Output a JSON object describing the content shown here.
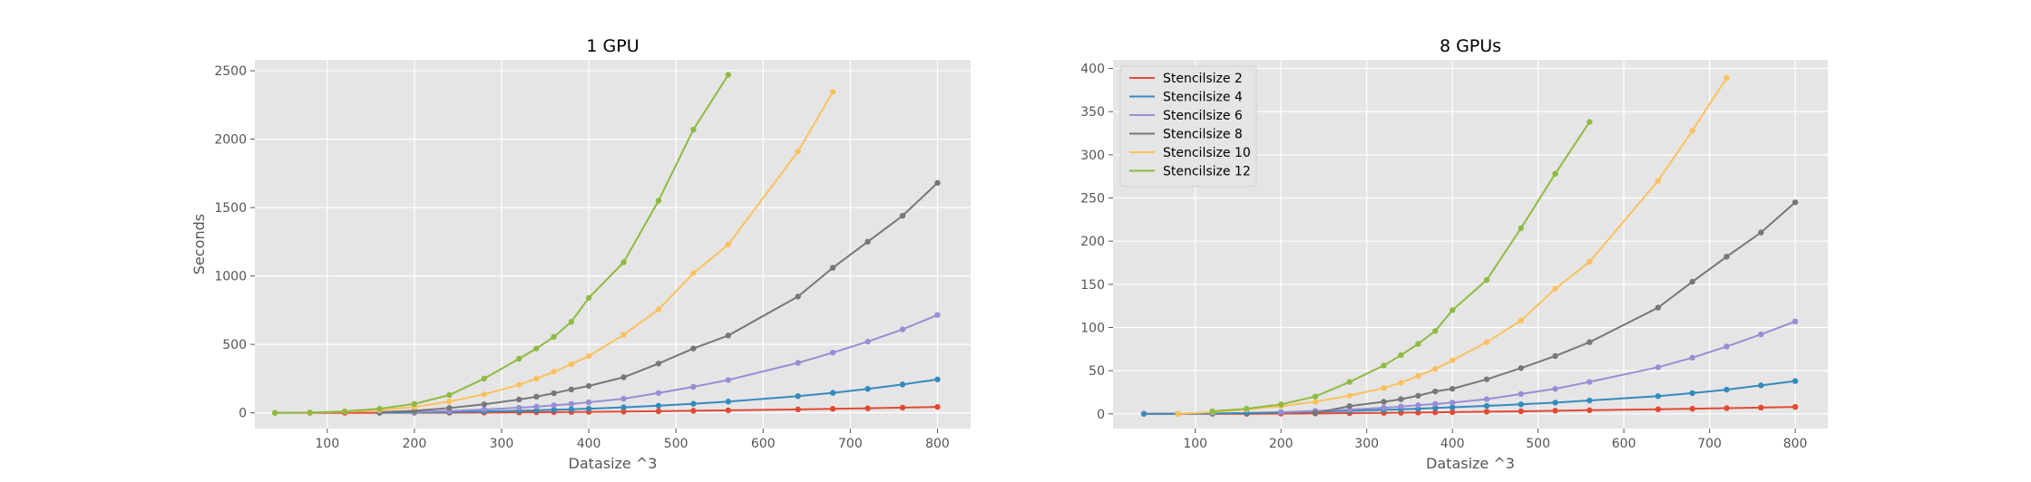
{
  "chart_data": [
    {
      "type": "line",
      "title": "1 GPU",
      "xlabel": "Datasize ^3",
      "ylabel": "Seconds",
      "xlim": [
        17,
        838
      ],
      "ylim": [
        -115,
        2580
      ],
      "xticks": [
        100,
        200,
        300,
        400,
        500,
        600,
        700,
        800
      ],
      "yticks": [
        0,
        500,
        1000,
        1500,
        2000,
        2500
      ],
      "grid": true,
      "legend": null,
      "series": [
        {
          "name": "Stencilsize 2",
          "color": "#E24A33",
          "points": [
            [
              40,
              0
            ],
            [
              80,
              0
            ],
            [
              120,
              0
            ],
            [
              160,
              0
            ],
            [
              200,
              1
            ],
            [
              240,
              1
            ],
            [
              280,
              2
            ],
            [
              320,
              3
            ],
            [
              340,
              4
            ],
            [
              360,
              5
            ],
            [
              380,
              6
            ],
            [
              400,
              7
            ],
            [
              440,
              9
            ],
            [
              480,
              12
            ],
            [
              520,
              15
            ],
            [
              560,
              18
            ],
            [
              640,
              25
            ],
            [
              680,
              29
            ],
            [
              720,
              33
            ],
            [
              760,
              38
            ],
            [
              800,
              43
            ]
          ]
        },
        {
          "name": "Stencilsize 4",
          "color": "#348ABD",
          "points": [
            [
              160,
              1
            ],
            [
              200,
              3
            ],
            [
              240,
              6
            ],
            [
              280,
              10
            ],
            [
              320,
              15
            ],
            [
              340,
              18
            ],
            [
              360,
              22
            ],
            [
              380,
              26
            ],
            [
              400,
              30
            ],
            [
              440,
              40
            ],
            [
              480,
              52
            ],
            [
              520,
              66
            ],
            [
              560,
              82
            ],
            [
              640,
              122
            ],
            [
              680,
              146
            ],
            [
              720,
              175
            ],
            [
              760,
              207
            ],
            [
              800,
              244
            ]
          ]
        },
        {
          "name": "Stencilsize 6",
          "color": "#988ED5",
          "points": [
            [
              200,
              7
            ],
            [
              240,
              14
            ],
            [
              280,
              24
            ],
            [
              320,
              37
            ],
            [
              340,
              45
            ],
            [
              360,
              55
            ],
            [
              380,
              65
            ],
            [
              400,
              77
            ],
            [
              440,
              103
            ],
            [
              480,
              145
            ],
            [
              520,
              190
            ],
            [
              560,
              240
            ],
            [
              640,
              365
            ],
            [
              680,
              440
            ],
            [
              720,
              520
            ],
            [
              760,
              610
            ],
            [
              800,
              715
            ]
          ]
        },
        {
          "name": "Stencilsize 8",
          "color": "#777777",
          "points": [
            [
              160,
              5
            ],
            [
              200,
              15
            ],
            [
              240,
              35
            ],
            [
              280,
              62
            ],
            [
              320,
              97
            ],
            [
              340,
              118
            ],
            [
              360,
              143
            ],
            [
              380,
              171
            ],
            [
              400,
              196
            ],
            [
              440,
              260
            ],
            [
              480,
              360
            ],
            [
              520,
              470
            ],
            [
              560,
              565
            ],
            [
              640,
              850
            ],
            [
              680,
              1060
            ],
            [
              720,
              1250
            ],
            [
              760,
              1440
            ],
            [
              800,
              1680
            ]
          ]
        },
        {
          "name": "Stencilsize 10",
          "color": "#FBC15E",
          "points": [
            [
              40,
              0
            ],
            [
              80,
              2
            ],
            [
              120,
              8
            ],
            [
              160,
              20
            ],
            [
              200,
              42
            ],
            [
              240,
              82
            ],
            [
              280,
              135
            ],
            [
              320,
              205
            ],
            [
              340,
              250
            ],
            [
              360,
              300
            ],
            [
              380,
              355
            ],
            [
              400,
              415
            ],
            [
              440,
              570
            ],
            [
              480,
              755
            ],
            [
              520,
              1020
            ],
            [
              560,
              1230
            ],
            [
              640,
              1910
            ],
            [
              680,
              2345
            ]
          ]
        },
        {
          "name": "Stencilsize 12",
          "color": "#8EBA42",
          "points": [
            [
              40,
              0
            ],
            [
              80,
              2
            ],
            [
              120,
              10
            ],
            [
              160,
              30
            ],
            [
              200,
              65
            ],
            [
              240,
              130
            ],
            [
              280,
              250
            ],
            [
              320,
              395
            ],
            [
              340,
              470
            ],
            [
              360,
              555
            ],
            [
              380,
              665
            ],
            [
              400,
              840
            ],
            [
              440,
              1100
            ],
            [
              480,
              1550
            ],
            [
              520,
              2070
            ],
            [
              560,
              2470
            ]
          ]
        }
      ]
    },
    {
      "type": "line",
      "title": "8 GPUs",
      "xlabel": "Datasize ^3",
      "ylabel": "",
      "xlim": [
        4,
        838
      ],
      "ylim": [
        -17,
        410
      ],
      "xticks": [
        100,
        200,
        300,
        400,
        500,
        600,
        700,
        800
      ],
      "yticks": [
        0,
        50,
        100,
        150,
        200,
        250,
        300,
        350,
        400
      ],
      "grid": true,
      "legend": "top-left",
      "series": [
        {
          "name": "Stencilsize 2",
          "color": "#E24A33",
          "points": [
            [
              40,
              0
            ],
            [
              80,
              0
            ],
            [
              120,
              0
            ],
            [
              160,
              0
            ],
            [
              200,
              0.3
            ],
            [
              240,
              0.5
            ],
            [
              280,
              0.8
            ],
            [
              320,
              1.1
            ],
            [
              340,
              1.3
            ],
            [
              360,
              1.5
            ],
            [
              380,
              1.8
            ],
            [
              400,
              2
            ],
            [
              440,
              2.5
            ],
            [
              480,
              3
            ],
            [
              520,
              3.6
            ],
            [
              560,
              4.2
            ],
            [
              640,
              5.3
            ],
            [
              680,
              6
            ],
            [
              720,
              6.6
            ],
            [
              760,
              7.3
            ],
            [
              800,
              8
            ]
          ]
        },
        {
          "name": "Stencilsize 4",
          "color": "#348ABD",
          "points": [
            [
              40,
              0
            ],
            [
              80,
              0
            ],
            [
              120,
              0.5
            ],
            [
              160,
              1
            ],
            [
              200,
              1.8
            ],
            [
              240,
              2.5
            ],
            [
              280,
              3.5
            ],
            [
              320,
              4.7
            ],
            [
              340,
              5.3
            ],
            [
              360,
              6
            ],
            [
              380,
              6.8
            ],
            [
              400,
              7.6
            ],
            [
              440,
              9.2
            ],
            [
              480,
              11
            ],
            [
              520,
              13
            ],
            [
              560,
              15.5
            ],
            [
              640,
              20.5
            ],
            [
              680,
              24
            ],
            [
              720,
              28
            ],
            [
              760,
              33
            ],
            [
              800,
              38
            ]
          ]
        },
        {
          "name": "Stencilsize 6",
          "color": "#988ED5",
          "points": [
            [
              200,
              2
            ],
            [
              240,
              3.5
            ],
            [
              280,
              5
            ],
            [
              320,
              7
            ],
            [
              340,
              8.5
            ],
            [
              360,
              10
            ],
            [
              380,
              11.5
            ],
            [
              400,
              13
            ],
            [
              440,
              17
            ],
            [
              480,
              23
            ],
            [
              520,
              29
            ],
            [
              560,
              37
            ],
            [
              640,
              54
            ],
            [
              680,
              65
            ],
            [
              720,
              78
            ],
            [
              760,
              92
            ],
            [
              800,
              107
            ]
          ]
        },
        {
          "name": "Stencilsize 8",
          "color": "#777777",
          "points": [
            [
              240,
              1
            ],
            [
              280,
              9
            ],
            [
              320,
              14
            ],
            [
              340,
              17
            ],
            [
              360,
              21
            ],
            [
              380,
              26
            ],
            [
              400,
              29
            ],
            [
              440,
              40
            ],
            [
              480,
              53
            ],
            [
              520,
              67
            ],
            [
              560,
              83
            ],
            [
              640,
              123
            ],
            [
              680,
              153
            ],
            [
              720,
              182
            ],
            [
              760,
              210
            ],
            [
              800,
              245
            ]
          ]
        },
        {
          "name": "Stencilsize 10",
          "color": "#FBC15E",
          "points": [
            [
              80,
              0
            ],
            [
              120,
              2
            ],
            [
              160,
              5
            ],
            [
              200,
              9
            ],
            [
              240,
              14
            ],
            [
              280,
              21
            ],
            [
              320,
              30
            ],
            [
              340,
              36
            ],
            [
              360,
              44
            ],
            [
              380,
              52
            ],
            [
              400,
              62
            ],
            [
              440,
              83
            ],
            [
              480,
              108
            ],
            [
              520,
              145
            ],
            [
              560,
              176
            ],
            [
              640,
              270
            ],
            [
              680,
              328
            ],
            [
              720,
              389
            ]
          ]
        },
        {
          "name": "Stencilsize 12",
          "color": "#8EBA42",
          "points": [
            [
              120,
              3
            ],
            [
              160,
              6
            ],
            [
              200,
              11
            ],
            [
              240,
              20
            ],
            [
              280,
              37
            ],
            [
              320,
              56
            ],
            [
              340,
              68
            ],
            [
              360,
              81
            ],
            [
              380,
              96
            ],
            [
              400,
              120
            ],
            [
              440,
              155
            ],
            [
              480,
              215
            ],
            [
              520,
              278
            ],
            [
              560,
              338
            ]
          ]
        }
      ]
    }
  ]
}
